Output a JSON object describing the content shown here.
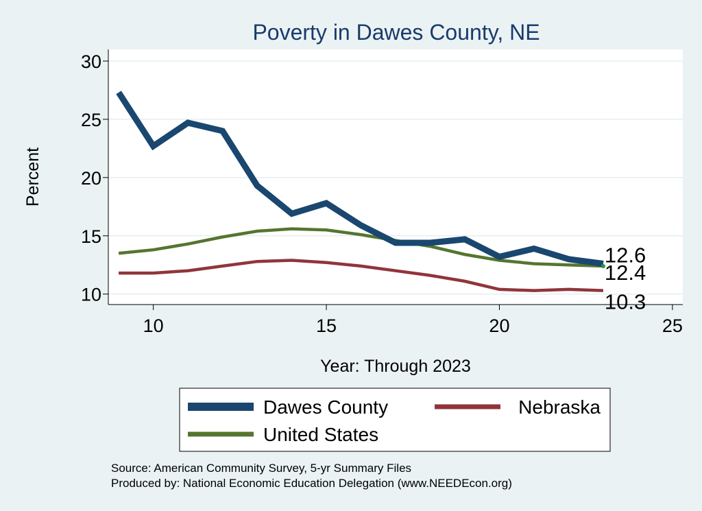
{
  "chart_data": {
    "type": "line",
    "title": "Poverty in Dawes County, NE",
    "xlabel": "Year: Through 2023",
    "ylabel": "Percent",
    "xlim": [
      8.7,
      25.3
    ],
    "ylim": [
      9.1,
      31
    ],
    "xticks": [
      10,
      15,
      20,
      25
    ],
    "yticks": [
      10,
      15,
      20,
      25,
      30
    ],
    "grid": true,
    "legend_position": "bottom",
    "x": [
      9,
      10,
      11,
      12,
      13,
      14,
      15,
      16,
      17,
      18,
      19,
      20,
      21,
      22,
      23
    ],
    "series": [
      {
        "name": "Dawes County",
        "color": "#1a476f",
        "values": [
          27.3,
          22.7,
          24.7,
          24.0,
          19.3,
          16.9,
          17.8,
          15.9,
          14.4,
          14.4,
          14.7,
          13.2,
          13.9,
          13.0,
          12.6
        ],
        "end_label": "12.6"
      },
      {
        "name": "Nebraska",
        "color": "#90353b",
        "values": [
          11.8,
          11.8,
          12.0,
          12.4,
          12.8,
          12.9,
          12.7,
          12.4,
          12.0,
          11.6,
          11.1,
          10.4,
          10.3,
          10.4,
          10.3
        ],
        "end_label": "10.3"
      },
      {
        "name": "United States",
        "color": "#55752f",
        "values": [
          13.5,
          13.8,
          14.3,
          14.9,
          15.4,
          15.6,
          15.5,
          15.1,
          14.6,
          14.1,
          13.4,
          12.9,
          12.6,
          12.5,
          12.4
        ],
        "end_label": "12.4"
      }
    ]
  },
  "source_line": "Source: American Community Survey, 5-yr Summary Files",
  "produced_line": "Produced by: National Economic Education Delegation (www.NEEDEcon.org)"
}
